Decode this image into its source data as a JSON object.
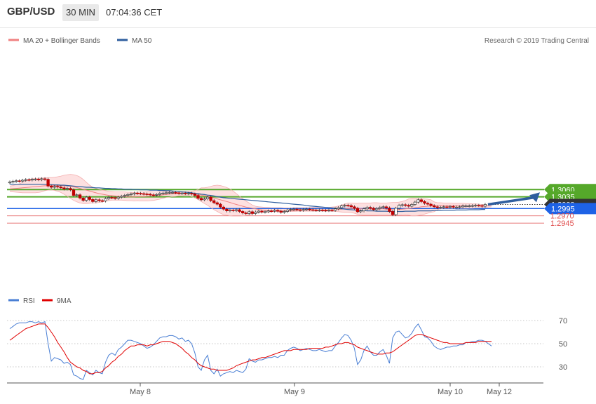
{
  "header": {
    "pair": "GBP/USD",
    "timeframe": "30 MIN",
    "time": "07:04:36 CET"
  },
  "credit": "Research © 2019 Trading Central",
  "colors": {
    "bollinger": "#f08080",
    "bollinger_fill": "#fde0e0",
    "ma50": "#2e5e9e",
    "candle": "#c00000",
    "support_green": "#55a82a",
    "blue_level": "#1e62e6",
    "red_level": "#e05050",
    "current": "#333333",
    "arrow": "#2e5e9e",
    "rsi": "#4a7fd4",
    "rsi_ma": "#e00000"
  },
  "chart_data": [
    {
      "type": "candlestick",
      "title": "",
      "legend": [
        {
          "name": "MA 20 + Bollinger Bands",
          "color": "#f08080"
        },
        {
          "name": "MA 50",
          "color": "#2e5e9e"
        }
      ],
      "x_labels": [
        "May 8",
        "May 9",
        "May 10",
        "May 12"
      ],
      "ylim": [
        1.294,
        1.3115
      ],
      "levels": [
        {
          "value": 1.306,
          "label": "1.3060",
          "kind": "resistance"
        },
        {
          "value": 1.3035,
          "label": "1.3035",
          "kind": "resistance"
        },
        {
          "value": 1.3009,
          "label": "1.3009",
          "kind": "current"
        },
        {
          "value": 1.2995,
          "label": "1.2995",
          "kind": "pivot"
        },
        {
          "value": 1.297,
          "label": "1.2970",
          "kind": "support"
        },
        {
          "value": 1.2945,
          "label": "1.2945",
          "kind": "support"
        }
      ],
      "close": [
        1.3086,
        1.3088,
        1.309,
        1.3089,
        1.3092,
        1.3094,
        1.3093,
        1.3095,
        1.3096,
        1.3094,
        1.3097,
        1.3095,
        1.3072,
        1.3068,
        1.3071,
        1.3069,
        1.3066,
        1.3062,
        1.3064,
        1.3059,
        1.304,
        1.3042,
        1.3031,
        1.3023,
        1.3034,
        1.3026,
        1.3019,
        1.3025,
        1.3022,
        1.3021,
        1.3029,
        1.3033,
        1.3032,
        1.303,
        1.3034,
        1.3037,
        1.304,
        1.3043,
        1.3045,
        1.3048,
        1.3047,
        1.3046,
        1.3045,
        1.3044,
        1.3042,
        1.3041,
        1.3043,
        1.3047,
        1.3048,
        1.3049,
        1.305,
        1.305,
        1.3049,
        1.3047,
        1.3048,
        1.3046,
        1.3047,
        1.3045,
        1.304,
        1.303,
        1.3025,
        1.3028,
        1.3034,
        1.3022,
        1.3015,
        1.301,
        1.3,
        1.2993,
        1.2987,
        1.299,
        1.2988,
        1.2991,
        1.2985,
        1.298,
        1.2978,
        1.2984,
        1.2978,
        1.2983,
        1.2986,
        1.2983,
        1.2984,
        1.2987,
        1.2986,
        1.2989,
        1.2986,
        1.2982,
        1.2985,
        1.299,
        1.2992,
        1.2993,
        1.2991,
        1.2989,
        1.2992,
        1.2993,
        1.2991,
        1.299,
        1.2989,
        1.299,
        1.2989,
        1.2988,
        1.299,
        1.2989,
        1.2994,
        1.2998,
        1.3004,
        1.3006,
        1.3005,
        1.3001,
        1.2996,
        1.2984,
        1.2987,
        1.2994,
        1.2999,
        1.2996,
        1.2991,
        1.2995,
        1.2999,
        1.3001,
        1.2997,
        1.2985,
        1.2974,
        1.2996,
        1.3006,
        1.3008,
        1.3006,
        1.3003,
        1.3009,
        1.3017,
        1.3025,
        1.3019,
        1.3013,
        1.301,
        1.3005,
        1.3001,
        1.2998,
        1.2999,
        1.3001,
        1.3,
        1.3002,
        1.3,
        1.3,
        1.3001,
        1.3004,
        1.3004,
        1.3004,
        1.3005,
        1.3006,
        1.3005,
        1.3003,
        1.3009
      ],
      "ma20": [
        1.3062,
        1.3063,
        1.3064,
        1.3065,
        1.3066,
        1.3067,
        1.3068,
        1.3069,
        1.307,
        1.3071,
        1.3072,
        1.3073,
        1.3073,
        1.3074,
        1.3074,
        1.3074,
        1.3074,
        1.3073,
        1.3072,
        1.3071,
        1.3069,
        1.3067,
        1.3064,
        1.3061,
        1.3058,
        1.3055,
        1.3052,
        1.3049,
        1.3046,
        1.3044,
        1.3042,
        1.304,
        1.3039,
        1.3038,
        1.3037,
        1.3036,
        1.3036,
        1.3035,
        1.3035,
        1.3035,
        1.3036,
        1.3036,
        1.3036,
        1.3037,
        1.3037,
        1.3038,
        1.3039,
        1.304,
        1.3042,
        1.3043,
        1.3044,
        1.3045,
        1.3045,
        1.3046,
        1.3046,
        1.3046,
        1.3046,
        1.3045,
        1.3044,
        1.3043,
        1.3041,
        1.3039,
        1.3037,
        1.3034,
        1.3031,
        1.3028,
        1.3025,
        1.3022,
        1.3019,
        1.3016,
        1.3012,
        1.3009,
        1.3006,
        1.3003,
        1.3,
        1.2998,
        1.2996,
        1.2994,
        1.2992,
        1.299,
        1.2989,
        1.2988,
        1.2987,
        1.2987,
        1.2987,
        1.2987,
        1.2987,
        1.2987,
        1.2988,
        1.2988,
        1.2989,
        1.2989,
        1.2989,
        1.299,
        1.299,
        1.299,
        1.299,
        1.299,
        1.299,
        1.299,
        1.299,
        1.299,
        1.2991,
        1.2992,
        1.2993,
        1.2994,
        1.2995,
        1.2995,
        1.2995,
        1.2994,
        1.2994,
        1.2994,
        1.2994,
        1.2994,
        1.2993,
        1.2993,
        1.2994,
        1.2994,
        1.2993,
        1.2992,
        1.2991,
        1.2991,
        1.2992,
        1.2993,
        1.2994,
        1.2995,
        1.2996,
        1.2998,
        1.2999,
        1.3001,
        1.3002,
        1.3003,
        1.3004,
        1.3004,
        1.3005,
        1.3005,
        1.3005,
        1.3005,
        1.3005,
        1.3005,
        1.3005,
        1.3005,
        1.3005,
        1.3004,
        1.3004,
        1.3004,
        1.3004,
        1.3005,
        1.3005,
        1.3005,
        1.3005,
        1.3006
      ],
      "bb_upper": [
        1.3072,
        1.3074,
        1.3077,
        1.308,
        1.3085,
        1.309,
        1.3095,
        1.3097,
        1.3098,
        1.3099,
        1.31,
        1.31,
        1.3101,
        1.3101,
        1.3102,
        1.3104,
        1.3106,
        1.3109,
        1.3111,
        1.3112,
        1.3111,
        1.3108,
        1.3103,
        1.3095,
        1.3085,
        1.3075,
        1.3068,
        1.3064,
        1.3061,
        1.3058,
        1.3056,
        1.3054,
        1.3053,
        1.3052,
        1.3052,
        1.3052,
        1.3052,
        1.3051,
        1.3051,
        1.305,
        1.3051,
        1.3052,
        1.3052,
        1.3053,
        1.3053,
        1.3052,
        1.3052,
        1.3053,
        1.3053,
        1.3054,
        1.3054,
        1.3054,
        1.3053,
        1.3053,
        1.3053,
        1.3053,
        1.3053,
        1.3054,
        1.3056,
        1.306,
        1.3066,
        1.3066,
        1.3068,
        1.3071,
        1.3074,
        1.3075,
        1.3074,
        1.3071,
        1.3067,
        1.3062,
        1.3055,
        1.3046,
        1.3037,
        1.3029,
        1.3021,
        1.3014,
        1.3007,
        1.3003,
        1.3001,
        1.3,
        1.2999,
        1.2999,
        1.2998,
        1.2998,
        1.2998,
        1.2998,
        1.2997,
        1.2997,
        1.2997,
        1.2998,
        1.2998,
        1.2998,
        1.2998,
        1.2998,
        1.2998,
        1.2999,
        1.2999,
        1.2999,
        1.2999,
        1.2999,
        1.2999,
        1.3,
        1.3001,
        1.3004,
        1.3007,
        1.3011,
        1.3014,
        1.3014,
        1.3013,
        1.3013,
        1.3014,
        1.3014,
        1.3014,
        1.3014,
        1.3015,
        1.3015,
        1.3014,
        1.3014,
        1.3014,
        1.3015,
        1.3016,
        1.3016,
        1.3017,
        1.3019,
        1.3023,
        1.3028,
        1.303,
        1.303,
        1.3029,
        1.3029,
        1.3028,
        1.3027,
        1.3025,
        1.3018,
        1.3015,
        1.3015,
        1.3014,
        1.3014,
        1.3014,
        1.3013,
        1.3013,
        1.3013,
        1.3013,
        1.3012,
        1.3012,
        1.3011,
        1.3011,
        1.301,
        1.3009,
        1.3008
      ],
      "bb_lower": [
        1.3053,
        1.3052,
        1.3051,
        1.305,
        1.3049,
        1.3049,
        1.3049,
        1.3049,
        1.3049,
        1.305,
        1.3052,
        1.3056,
        1.3058,
        1.3059,
        1.3057,
        1.3054,
        1.305,
        1.3044,
        1.3037,
        1.303,
        1.3023,
        1.3018,
        1.3014,
        1.3012,
        1.3012,
        1.3013,
        1.3014,
        1.3014,
        1.3016,
        1.3018,
        1.302,
        1.3022,
        1.3024,
        1.3024,
        1.3024,
        1.3024,
        1.3023,
        1.3022,
        1.3022,
        1.3021,
        1.3022,
        1.3021,
        1.3021,
        1.3021,
        1.3022,
        1.3023,
        1.3025,
        1.3027,
        1.303,
        1.3033,
        1.3034,
        1.3036,
        1.3037,
        1.3039,
        1.3039,
        1.304,
        1.304,
        1.3036,
        1.3031,
        1.3026,
        1.3019,
        1.3012,
        1.3006,
        1.2998,
        1.2991,
        1.2985,
        1.2979,
        1.2974,
        1.2972,
        1.297,
        1.2969,
        1.2969,
        1.2969,
        1.297,
        1.2971,
        1.2973,
        1.2976,
        1.2979,
        1.2981,
        1.2982,
        1.2983,
        1.2983,
        1.2984,
        1.2984,
        1.2984,
        1.2984,
        1.2984,
        1.2984,
        1.2985,
        1.2985,
        1.2986,
        1.2986,
        1.2986,
        1.2986,
        1.2986,
        1.2986,
        1.2986,
        1.2986,
        1.2986,
        1.2986,
        1.2986,
        1.2985,
        1.2985,
        1.2984,
        1.2983,
        1.2982,
        1.2982,
        1.2981,
        1.2979,
        1.2975,
        1.2973,
        1.2972,
        1.2972,
        1.2972,
        1.2972,
        1.2972,
        1.2973,
        1.2973,
        1.2973,
        1.2972,
        1.2972,
        1.2971,
        1.2972,
        1.2973,
        1.2974,
        1.2972,
        1.297,
        1.297,
        1.2971,
        1.2973,
        1.2976,
        1.2979,
        1.2982,
        1.2984,
        1.299,
        1.2995,
        1.2996,
        1.2996,
        1.2996,
        1.2996,
        1.2996,
        1.2996,
        1.2996,
        1.2996,
        1.2996,
        1.2996,
        1.2997,
        1.2997,
        1.2998,
        1.2999,
        1.3,
        1.3001
      ],
      "ma50": [
        1.3079,
        1.3078,
        1.3078,
        1.3078,
        1.3078,
        1.3078,
        1.3078,
        1.3078,
        1.3078,
        1.3078,
        1.3078,
        1.3078,
        1.3077,
        1.3077,
        1.3076,
        1.3076,
        1.3075,
        1.3075,
        1.3074,
        1.3073,
        1.3072,
        1.3071,
        1.307,
        1.3069,
        1.3068,
        1.3068,
        1.3067,
        1.3066,
        1.3066,
        1.3065,
        1.3064,
        1.3064,
        1.3063,
        1.3063,
        1.3062,
        1.3062,
        1.3061,
        1.3061,
        1.3061,
        1.306,
        1.306,
        1.3059,
        1.3059,
        1.3059,
        1.3058,
        1.3058,
        1.3058,
        1.3057,
        1.3057,
        1.3056,
        1.3056,
        1.3055,
        1.3054,
        1.3053,
        1.3052,
        1.3051,
        1.305,
        1.3049,
        1.3047,
        1.3046,
        1.3044,
        1.3043,
        1.3041,
        1.304,
        1.3038,
        1.3036,
        1.3034,
        1.3032,
        1.3031,
        1.303,
        1.3029,
        1.3028,
        1.3027,
        1.3026,
        1.3025,
        1.3024,
        1.3023,
        1.3022,
        1.3021,
        1.302,
        1.3019,
        1.3018,
        1.3017,
        1.3016,
        1.3015,
        1.3014,
        1.3013,
        1.3012,
        1.3011,
        1.301,
        1.3009,
        1.3008,
        1.3007,
        1.3005,
        1.3004,
        1.3003,
        1.3002,
        1.3001,
        1.3,
        1.2999,
        1.2998,
        1.2997,
        1.2996,
        1.2995,
        1.2994,
        1.2993,
        1.2992,
        1.2991,
        1.299,
        1.2989,
        1.2988,
        1.2988,
        1.2987,
        1.2987,
        1.2987,
        1.2986,
        1.2986,
        1.2986,
        1.2986,
        1.2985,
        1.2985,
        1.2985,
        1.2985,
        1.2985,
        1.2986,
        1.2986,
        1.2986,
        1.2986,
        1.2987,
        1.2987,
        1.2987,
        1.2987,
        1.2987,
        1.2988,
        1.2988,
        1.2988,
        1.2989,
        1.2989,
        1.2989,
        1.2989,
        1.299,
        1.299,
        1.299,
        1.299,
        1.2991,
        1.2991,
        1.2991,
        1.2991,
        1.2992,
        1.2992
      ],
      "projection": {
        "from": 1.3009,
        "to": 1.306
      }
    },
    {
      "type": "line",
      "title": "",
      "legend": [
        {
          "name": "RSI",
          "color": "#4a7fd4"
        },
        {
          "name": "9MA",
          "color": "#e00000"
        }
      ],
      "yticks": [
        30,
        50,
        70
      ],
      "ylim": [
        12,
        86
      ],
      "rsi": [
        63,
        65,
        67,
        68,
        68,
        68,
        69,
        69,
        68,
        69,
        68,
        69,
        50,
        35,
        38,
        37,
        36,
        33,
        34,
        32,
        23,
        22,
        20,
        19,
        27,
        25,
        23,
        27,
        25,
        24,
        34,
        40,
        42,
        40,
        45,
        47,
        50,
        53,
        53,
        52,
        51,
        50,
        48,
        46,
        47,
        49,
        52,
        55,
        56,
        56,
        57,
        57,
        56,
        54,
        55,
        52,
        53,
        50,
        42,
        30,
        27,
        36,
        40,
        27,
        24,
        28,
        22,
        24,
        25,
        26,
        25,
        27,
        26,
        25,
        28,
        37,
        35,
        34,
        36,
        36,
        37,
        38,
        38,
        39,
        38,
        40,
        40,
        44,
        46,
        47,
        46,
        44,
        45,
        46,
        45,
        44,
        44,
        45,
        44,
        43,
        44,
        44,
        48,
        51,
        55,
        58,
        57,
        53,
        46,
        32,
        36,
        44,
        48,
        43,
        40,
        40,
        43,
        45,
        40,
        33,
        55,
        60,
        61,
        58,
        55,
        56,
        59,
        64,
        67,
        62,
        56,
        55,
        52,
        48,
        46,
        45,
        46,
        47,
        47,
        48,
        48,
        49,
        49,
        51,
        51,
        52,
        52,
        53,
        53,
        52,
        50,
        48
      ],
      "rsi_ma": [
        53,
        55,
        57,
        59,
        61,
        63,
        64,
        65,
        66,
        67,
        67,
        67,
        64,
        60,
        56,
        51,
        47,
        43,
        38,
        34,
        32,
        30,
        29,
        27,
        26,
        24,
        24,
        25,
        25,
        26,
        29,
        31,
        34,
        36,
        39,
        41,
        44,
        46,
        48,
        48,
        49,
        49,
        49,
        48,
        49,
        49,
        50,
        51,
        52,
        52,
        52,
        51,
        50,
        48,
        46,
        43,
        41,
        38,
        36,
        33,
        31,
        30,
        29,
        28,
        28,
        27,
        27,
        27,
        27,
        28,
        29,
        31,
        32,
        33,
        34,
        35,
        36,
        36,
        37,
        38,
        38,
        39,
        40,
        41,
        42,
        43,
        44,
        44,
        44,
        45,
        45,
        45,
        45,
        45,
        46,
        46,
        46,
        46,
        46,
        47,
        47,
        48,
        49,
        50,
        50,
        51,
        51,
        50,
        49,
        47,
        46,
        45,
        44,
        43,
        42,
        41,
        41,
        41,
        42,
        42,
        43,
        45,
        47,
        49,
        51,
        53,
        55,
        57,
        58,
        58,
        57,
        56,
        55,
        54,
        53,
        52,
        51,
        51,
        50,
        50,
        50,
        50,
        50,
        51,
        51,
        51,
        51,
        52,
        52,
        52,
        52,
        52
      ]
    }
  ]
}
